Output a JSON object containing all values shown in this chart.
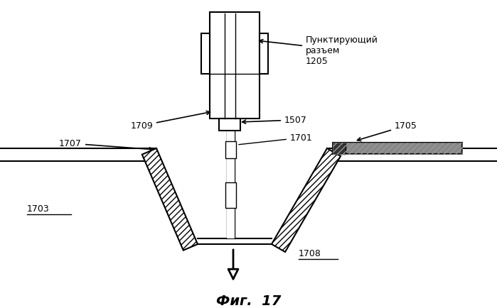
{
  "bg_color": "#ffffff",
  "black": "#000000",
  "title": "Фиг.  17",
  "label_1205": "Пунктирующий\nразъем\n1205",
  "label_1709": "1709",
  "label_1507": "1507",
  "label_1701": "1701",
  "label_1707": "1707",
  "label_1705": "1705",
  "label_1703": "1703",
  "label_1708": "1708"
}
